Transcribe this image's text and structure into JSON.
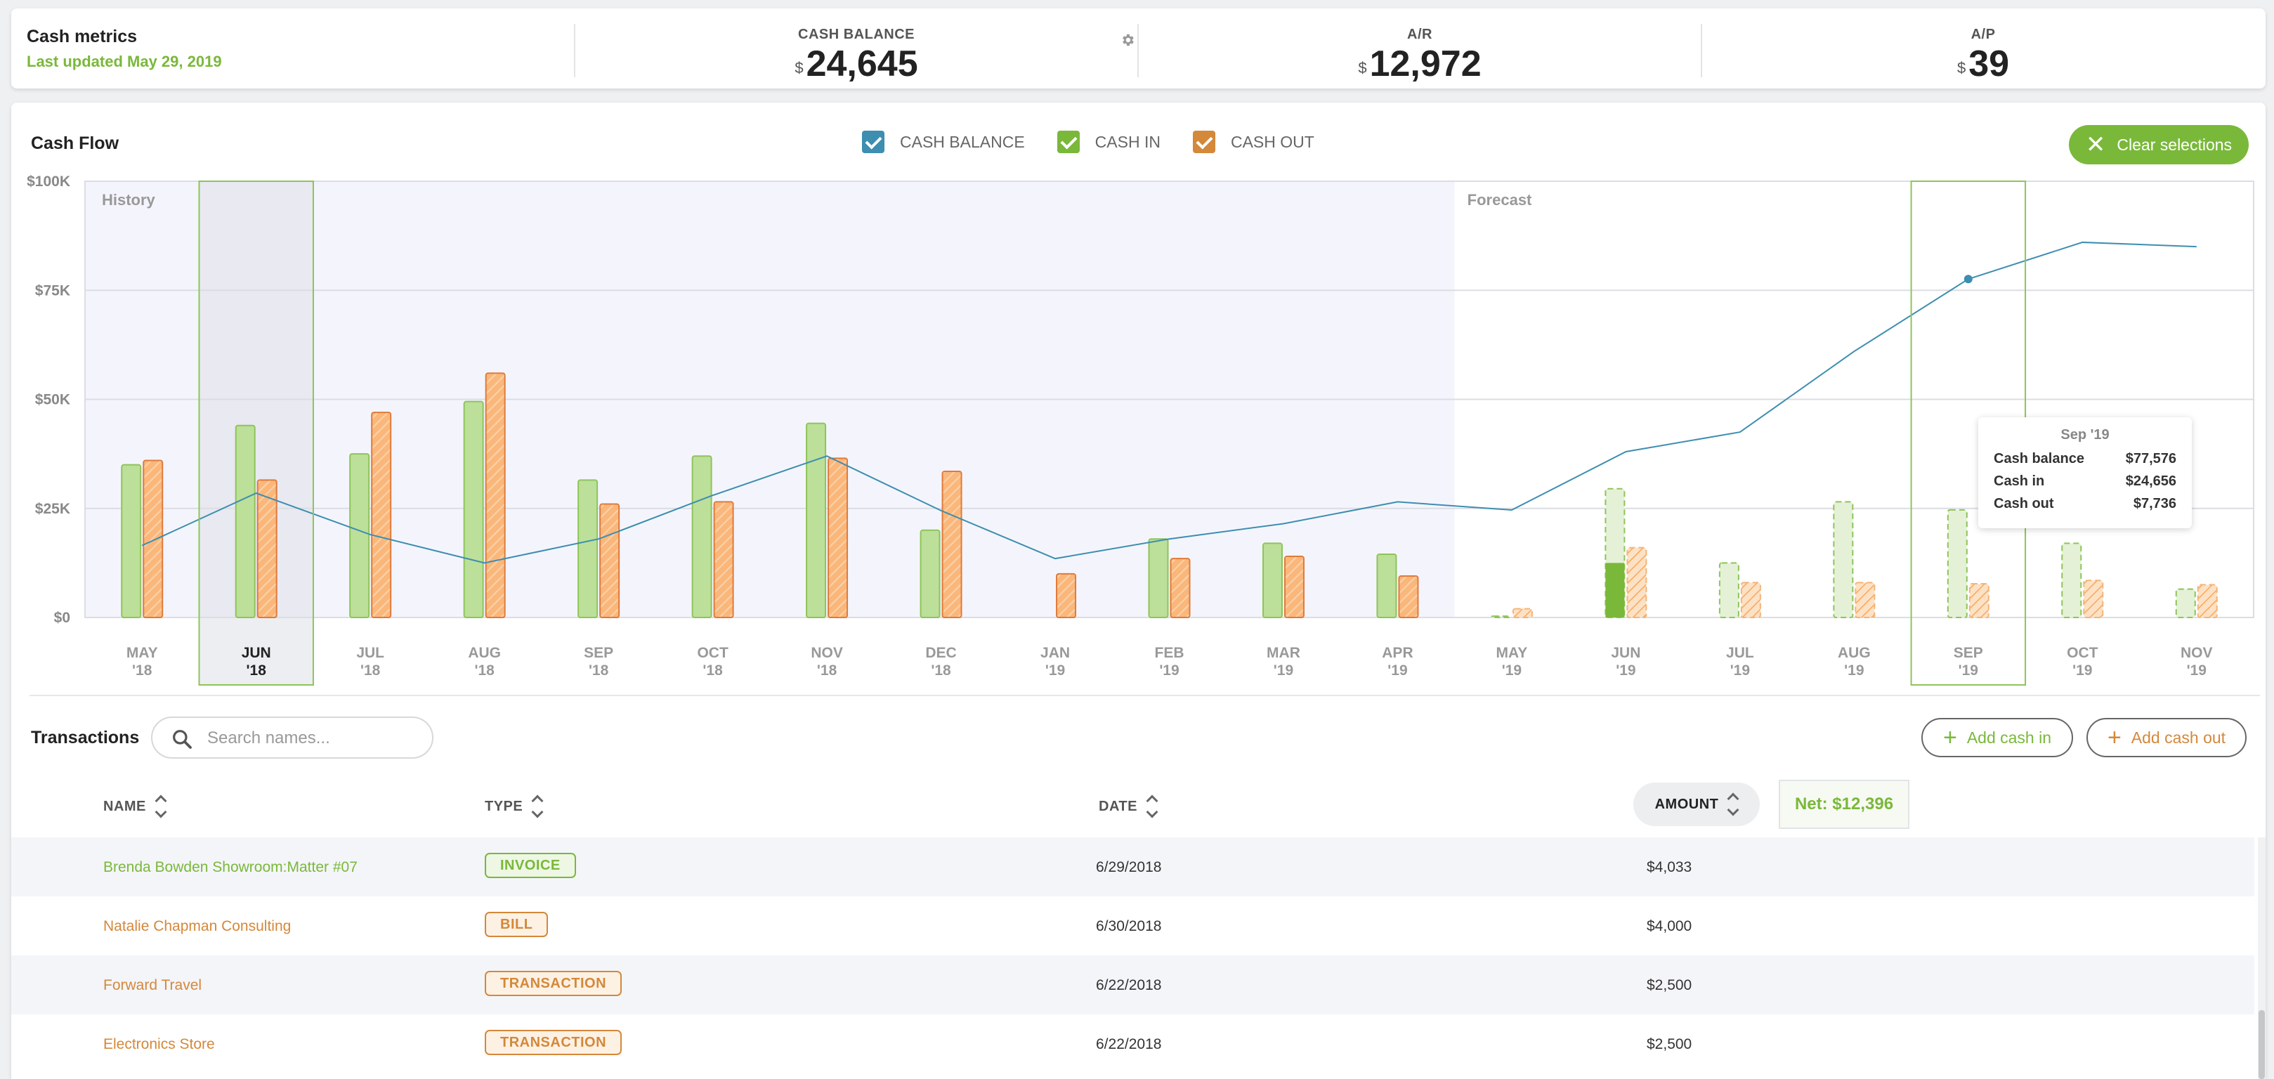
{
  "metrics": {
    "title": "Cash metrics",
    "updated": "Last updated May 29, 2019",
    "currency": "$",
    "cash_balance": {
      "label": "CASH BALANCE",
      "value": "24,645"
    },
    "ar": {
      "label": "A/R",
      "value": "12,972"
    },
    "ap": {
      "label": "A/P",
      "value": "39"
    }
  },
  "cashflow": {
    "title": "Cash Flow",
    "legend": [
      {
        "label": "CASH BALANCE",
        "color": "#3d8eb0"
      },
      {
        "label": "CASH IN",
        "color": "#7ab83a"
      },
      {
        "label": "CASH OUT",
        "color": "#d4883a"
      }
    ],
    "clear_label": "Clear selections",
    "history_label": "History",
    "forecast_label": "Forecast",
    "tooltip": {
      "title": "Sep '19",
      "rows": [
        {
          "label": "Cash balance",
          "value": "$77,576"
        },
        {
          "label": "Cash in",
          "value": "$24,656"
        },
        {
          "label": "Cash out",
          "value": "$7,736"
        }
      ]
    }
  },
  "chart_data": {
    "type": "bar",
    "categories": [
      [
        "MAY",
        "'18"
      ],
      [
        "JUN",
        "'18"
      ],
      [
        "JUL",
        "'18"
      ],
      [
        "AUG",
        "'18"
      ],
      [
        "SEP",
        "'18"
      ],
      [
        "OCT",
        "'18"
      ],
      [
        "NOV",
        "'18"
      ],
      [
        "DEC",
        "'18"
      ],
      [
        "JAN",
        "'19"
      ],
      [
        "FEB",
        "'19"
      ],
      [
        "MAR",
        "'19"
      ],
      [
        "APR",
        "'19"
      ],
      [
        "MAY",
        "'19"
      ],
      [
        "JUN",
        "'19"
      ],
      [
        "JUL",
        "'19"
      ],
      [
        "AUG",
        "'19"
      ],
      [
        "SEP",
        "'19"
      ],
      [
        "OCT",
        "'19"
      ],
      [
        "NOV",
        "'19"
      ]
    ],
    "y_ticks": [
      "$0",
      "$25K",
      "$50K",
      "$75K",
      "$100K"
    ],
    "ylim": [
      0,
      100000
    ],
    "history_count": 12,
    "selected": [
      "JUN '18",
      "SEP '19"
    ],
    "series": [
      {
        "name": "CASH IN",
        "values": [
          35000,
          44000,
          37500,
          49500,
          31500,
          37000,
          44500,
          20000,
          0,
          18000,
          17000,
          14500,
          300,
          29500,
          12500,
          26500,
          24656,
          17000,
          6500
        ]
      },
      {
        "name": "CASH OUT",
        "values": [
          36000,
          31500,
          47000,
          56000,
          26000,
          26500,
          36500,
          33500,
          10000,
          13500,
          14000,
          9500,
          2000,
          16000,
          8000,
          8000,
          7736,
          8500,
          7500
        ]
      },
      {
        "name": "CASH BALANCE",
        "values": [
          16500,
          28500,
          19000,
          12500,
          18000,
          28000,
          37000,
          24500,
          13500,
          18000,
          21500,
          26500,
          24645,
          38000,
          42500,
          61000,
          77576,
          86000,
          85000
        ]
      }
    ],
    "actual_cash_in": [
      {
        "category": "JUN '19",
        "value": 12500
      }
    ]
  },
  "transactions": {
    "title": "Transactions",
    "search_placeholder": "Search names...",
    "add_in_label": "Add cash in",
    "add_out_label": "Add cash out",
    "columns": {
      "name": "NAME",
      "type": "TYPE",
      "date": "DATE",
      "amount": "AMOUNT"
    },
    "net_label": "Net: $12,396",
    "rows": [
      {
        "name": "Brenda Bowden Showroom:Matter #07",
        "type": "INVOICE",
        "date": "6/29/2018",
        "amount": "$4,033",
        "color": "#7ab83a"
      },
      {
        "name": "Natalie Chapman Consulting",
        "type": "BILL",
        "date": "6/30/2018",
        "amount": "$4,000",
        "color": "#d4883a"
      },
      {
        "name": "Forward Travel",
        "type": "TRANSACTION",
        "date": "6/22/2018",
        "amount": "$2,500",
        "color": "#d4883a"
      },
      {
        "name": "Electronics Store",
        "type": "TRANSACTION",
        "date": "6/22/2018",
        "amount": "$2,500",
        "color": "#d4883a"
      }
    ]
  }
}
